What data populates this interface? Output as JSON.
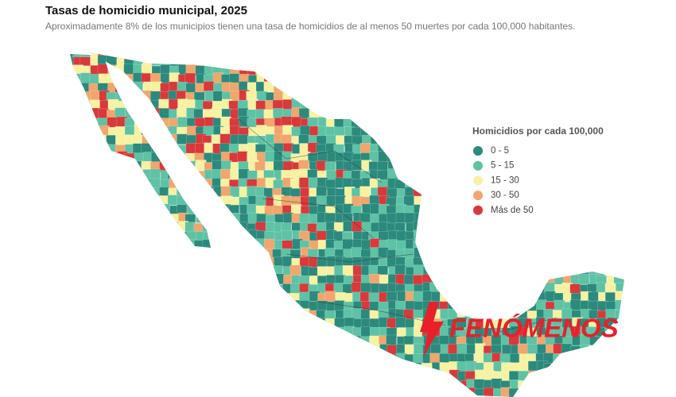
{
  "header": {
    "title": "Tasas de homicidio municipal, 2025",
    "subtitle": "Aproximadamente 8% de los municipios tienen una tasa de homicidios de al menos 50 muertes por cada 100,000 habitantes."
  },
  "legend": {
    "title": "Homicidios por cada 100,000",
    "items": [
      {
        "label": "0 - 5",
        "color": "#2b8a7c"
      },
      {
        "label": "5 - 15",
        "color": "#5ec2a5"
      },
      {
        "label": "15 - 30",
        "color": "#f6f2a2"
      },
      {
        "label": "30 - 50",
        "color": "#f0a66c"
      },
      {
        "label": "Más de 50",
        "color": "#d8393a"
      }
    ]
  },
  "watermark": "FENÓMENOS"
}
